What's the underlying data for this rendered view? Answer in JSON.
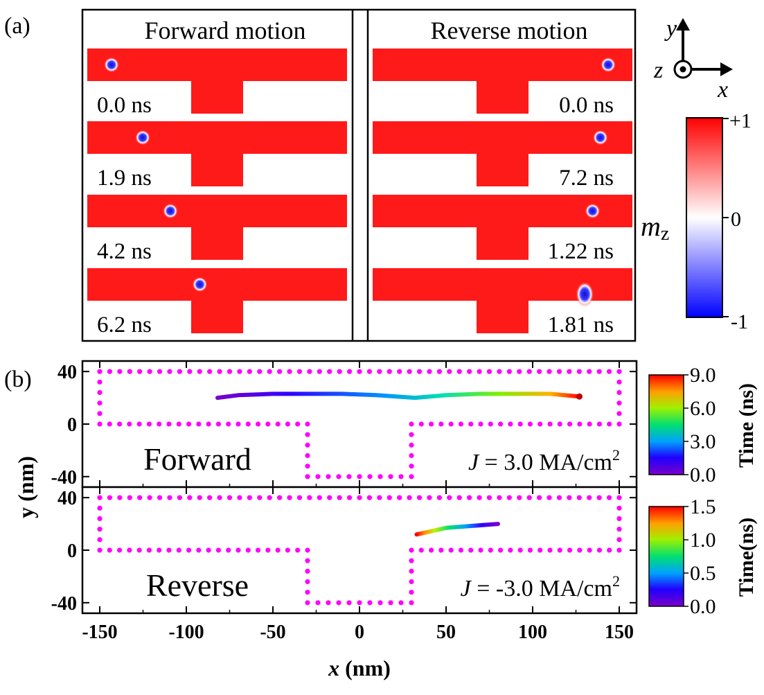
{
  "panel_a": {
    "label": "(a)",
    "forward": {
      "title": "Forward motion",
      "frames": [
        {
          "time": "0.0 ns",
          "skyrmion_x_nm": -122,
          "skyrmion_y_nm": 20,
          "elongated": false
        },
        {
          "time": "1.9 ns",
          "skyrmion_x_nm": -86,
          "skyrmion_y_nm": 20,
          "elongated": false
        },
        {
          "time": "4.2 ns",
          "skyrmion_x_nm": -54,
          "skyrmion_y_nm": 20,
          "elongated": false
        },
        {
          "time": "6.2 ns",
          "skyrmion_x_nm": -20,
          "skyrmion_y_nm": 20,
          "elongated": false
        }
      ]
    },
    "reverse": {
      "title": "Reverse motion",
      "frames": [
        {
          "time": "0.0 ns",
          "skyrmion_x_nm": 122,
          "skyrmion_y_nm": 20,
          "elongated": false
        },
        {
          "time": "7.2 ns",
          "skyrmion_x_nm": 113,
          "skyrmion_y_nm": 20,
          "elongated": false
        },
        {
          "time": "1.22 ns",
          "skyrmion_x_nm": 104,
          "skyrmion_y_nm": 20,
          "elongated": false
        },
        {
          "time": "1.81 ns",
          "skyrmion_x_nm": 95,
          "skyrmion_y_nm": 8,
          "elongated": true
        }
      ]
    },
    "axes": {
      "y": "y",
      "z": "z",
      "x": "x"
    },
    "colorbar": {
      "max": "+1",
      "mid": "0",
      "min": "-1",
      "label_main": "m",
      "label_sub": "z",
      "top_color": "#ff0000",
      "mid_color": "#ffffff",
      "bottom_color": "#0000ff"
    }
  },
  "panel_b": {
    "label": "(b)",
    "ylabel": "y (nm)",
    "xlabel_italic": "x",
    "xlabel_unit": " (nm)",
    "xticks": [
      -150,
      -100,
      -50,
      0,
      50,
      100,
      150
    ],
    "yticks": [
      40,
      0,
      -40
    ],
    "boundary_color": "#ff00ff",
    "forward": {
      "name": "Forward",
      "current_prefix": "J",
      "current_value": " = 3.0 MA/cm",
      "current_sup": "2",
      "colorbar_ticks": [
        "9.0",
        "6.0",
        "3.0",
        "0.0"
      ],
      "colorbar_label": "Time (ns)"
    },
    "reverse": {
      "name": "Reverse",
      "current_prefix": "J",
      "current_value": " = -3.0 MA/cm",
      "current_sup": "2",
      "colorbar_ticks": [
        "1.5",
        "1.0",
        "0.5",
        "0.0"
      ],
      "colorbar_label": "Time(ns)"
    }
  },
  "chart_data": [
    {
      "type": "line",
      "name": "Forward",
      "xlim": [
        -160,
        160
      ],
      "ylim": [
        -48,
        48
      ],
      "x": [
        -82,
        -70,
        -50,
        -30,
        -10,
        10,
        32,
        50,
        70,
        90,
        110,
        127
      ],
      "y": [
        20,
        22,
        23,
        23,
        23,
        22,
        20,
        22,
        23,
        23,
        23,
        21
      ],
      "time_range_ns": [
        0,
        9
      ],
      "track_x": [
        -150,
        150,
        150,
        30,
        30,
        -30,
        -30,
        -150,
        -150
      ],
      "track_y": [
        40,
        40,
        0,
        0,
        -40,
        -40,
        0,
        0,
        40
      ]
    },
    {
      "type": "line",
      "name": "Reverse",
      "xlim": [
        -160,
        160
      ],
      "ylim": [
        -48,
        48
      ],
      "x": [
        80,
        70,
        60,
        50,
        40,
        33
      ],
      "y": [
        20,
        19,
        18,
        17,
        14,
        12
      ],
      "time_range_ns": [
        0,
        1.5
      ],
      "track_x": [
        -150,
        150,
        150,
        30,
        30,
        -30,
        -30,
        -150,
        -150
      ],
      "track_y": [
        40,
        40,
        0,
        0,
        -40,
        -40,
        0,
        0,
        40
      ]
    }
  ]
}
